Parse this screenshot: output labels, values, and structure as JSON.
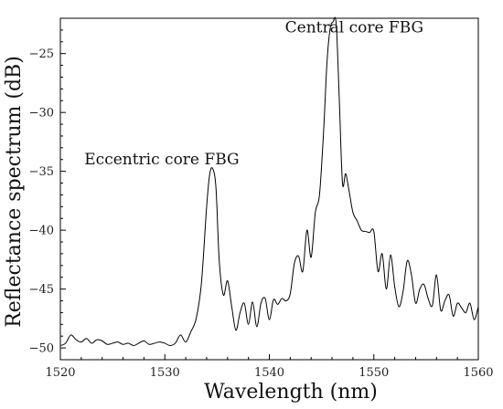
{
  "chart_data": {
    "type": "line",
    "xlabel": "Wavelength (nm)",
    "ylabel": "Reflectance spectrum (dB)",
    "xlim": [
      1520,
      1560
    ],
    "ylim": [
      -51,
      -22
    ],
    "grid": false,
    "xticks": [
      1520,
      1530,
      1540,
      1550,
      1560
    ],
    "yticks": [
      -50,
      -45,
      -40,
      -35,
      -30,
      -25
    ],
    "ytick_labels": [
      "−50",
      "−45",
      "−40",
      "−35",
      "−30",
      "−25"
    ],
    "annotations": [
      {
        "text": "Central core FBG",
        "x": 1541.5,
        "y": -23.2
      },
      {
        "text": "Eccentric core FBG",
        "x": 1522.3,
        "y": -34.4
      }
    ],
    "series": [
      {
        "x": [
          1520,
          1520.5,
          1521,
          1521.5,
          1522,
          1522.5,
          1523,
          1523.5,
          1524,
          1524.5,
          1525,
          1525.5,
          1526,
          1526.5,
          1527,
          1527.5,
          1528,
          1528.5,
          1529,
          1529.5,
          1530,
          1530.5,
          1531,
          1531.5,
          1532,
          1532.5,
          1533,
          1533.5,
          1534,
          1534.3,
          1534.6,
          1534.9,
          1535.2,
          1535.6,
          1536,
          1536.4,
          1536.8,
          1537.2,
          1537.6,
          1538,
          1538.4,
          1538.8,
          1539.2,
          1539.6,
          1540,
          1540.4,
          1540.8,
          1541.2,
          1541.6,
          1542,
          1542.4,
          1542.8,
          1543.2,
          1543.6,
          1544,
          1544.4,
          1544.8,
          1545.2,
          1545.5,
          1545.8,
          1546.1,
          1546.4,
          1546.7,
          1547,
          1547.3,
          1547.6,
          1548,
          1548.4,
          1548.8,
          1549.2,
          1549.6,
          1550,
          1550.4,
          1550.8,
          1551.2,
          1551.6,
          1552,
          1552.4,
          1552.8,
          1553.2,
          1553.6,
          1554,
          1554.4,
          1554.8,
          1555.2,
          1555.6,
          1556,
          1556.4,
          1556.8,
          1557.2,
          1557.6,
          1558,
          1558.4,
          1558.8,
          1559.2,
          1559.6,
          1560
        ],
        "y": [
          -49.8,
          -49.6,
          -48.9,
          -49.3,
          -49.5,
          -49.2,
          -49.6,
          -49.3,
          -49.4,
          -49.7,
          -49.6,
          -49.5,
          -49.7,
          -49.6,
          -49.8,
          -49.6,
          -49.4,
          -49.7,
          -49.6,
          -49.5,
          -49.6,
          -49.8,
          -49.6,
          -48.9,
          -49.5,
          -48.6,
          -47.5,
          -44.5,
          -38,
          -35.2,
          -34.8,
          -36.5,
          -42.5,
          -45.5,
          -44.3,
          -46.5,
          -48.5,
          -47,
          -46.2,
          -48,
          -46.1,
          -48.2,
          -46.2,
          -45.8,
          -47.6,
          -45.9,
          -46.3,
          -45.8,
          -46,
          -45.4,
          -42.8,
          -42.2,
          -43.5,
          -40,
          -42.3,
          -38.5,
          -37,
          -31.5,
          -26,
          -23,
          -22.3,
          -22.5,
          -29,
          -36,
          -35.2,
          -36.5,
          -38.5,
          -39.2,
          -40,
          -40.1,
          -40.2,
          -40.1,
          -43.5,
          -42,
          -45,
          -42.1,
          -44.8,
          -46.5,
          -45.2,
          -42.6,
          -43.8,
          -46.2,
          -45,
          -44.6,
          -45.8,
          -46.4,
          -43.8,
          -46.8,
          -46,
          -45.5,
          -47.3,
          -46.2,
          -46.6,
          -47,
          -46.2,
          -47.6,
          -46.5
        ]
      }
    ]
  }
}
